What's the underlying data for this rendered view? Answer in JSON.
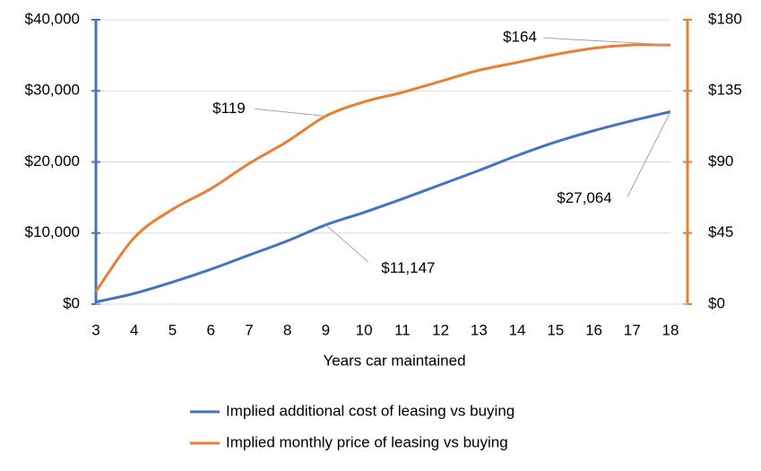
{
  "chart_data": {
    "type": "line",
    "xlabel": "Years car maintained",
    "x": [
      3,
      4,
      5,
      6,
      7,
      8,
      9,
      10,
      11,
      12,
      13,
      14,
      15,
      16,
      17,
      18
    ],
    "xlim": [
      3,
      18
    ],
    "xticks": [
      3,
      4,
      5,
      6,
      7,
      8,
      9,
      10,
      11,
      12,
      13,
      14,
      15,
      16,
      17,
      18
    ],
    "ylim": [
      0,
      40000
    ],
    "yticks": [
      {
        "value": 0,
        "label": "$0"
      },
      {
        "value": 10000,
        "label": "$10,000"
      },
      {
        "value": 20000,
        "label": "$20,000"
      },
      {
        "value": 30000,
        "label": "$30,000"
      },
      {
        "value": 40000,
        "label": "$40,000"
      }
    ],
    "y2lim": [
      0,
      180
    ],
    "y2ticks": [
      {
        "value": 0,
        "label": "$0"
      },
      {
        "value": 45,
        "label": "$45"
      },
      {
        "value": 90,
        "label": "$90"
      },
      {
        "value": 135,
        "label": "$135"
      },
      {
        "value": 180,
        "label": "$180"
      }
    ],
    "grid": true,
    "legend": "bottom",
    "series": [
      {
        "name": "Implied additional cost of leasing vs buying",
        "color": "#4472c4",
        "values": [
          300,
          1500,
          3100,
          4900,
          6900,
          8900,
          11147,
          12900,
          14800,
          16800,
          18800,
          20900,
          22800,
          24400,
          25800,
          27064
        ],
        "value_labels": [
          null,
          null,
          null,
          null,
          null,
          null,
          "$11,147",
          null,
          null,
          null,
          null,
          null,
          null,
          null,
          null,
          "$27,064"
        ]
      },
      {
        "name": "Implied monthly price of leasing vs buying",
        "color": "#ed7d31",
        "axis": "y2",
        "values": [
          8,
          42,
          60,
          73,
          89,
          103,
          119,
          128,
          134,
          141,
          148,
          153,
          158,
          162,
          164,
          164
        ],
        "value_labels": [
          null,
          null,
          null,
          null,
          null,
          null,
          "$119",
          null,
          null,
          null,
          null,
          null,
          null,
          null,
          null,
          "$164"
        ]
      }
    ]
  }
}
